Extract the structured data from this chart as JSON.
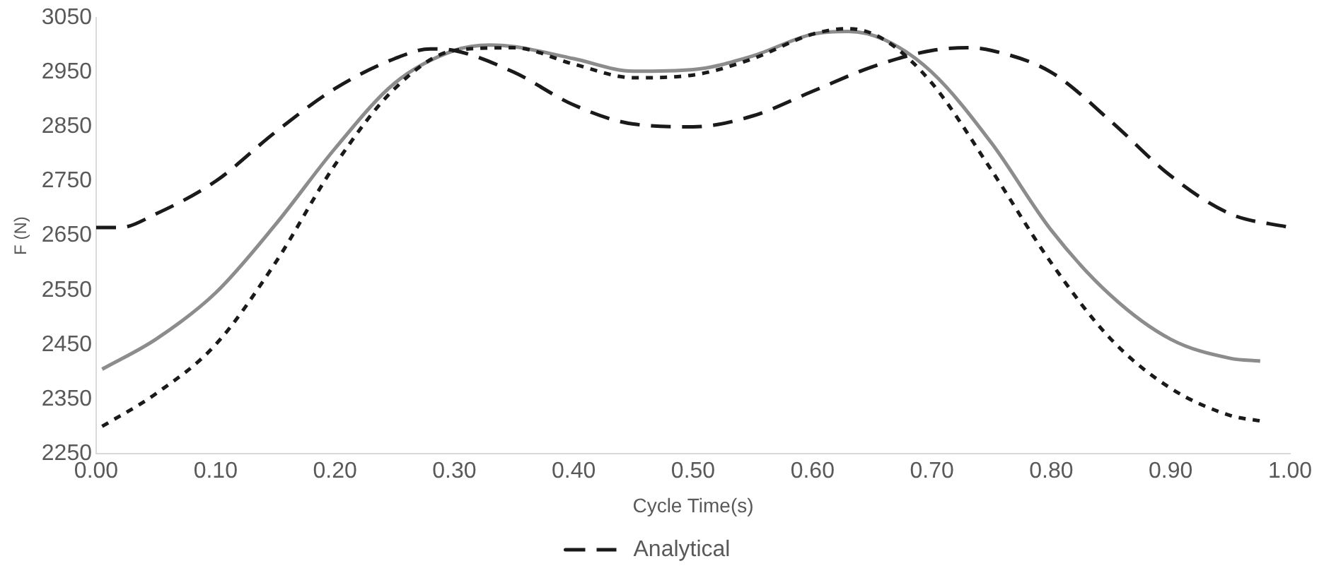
{
  "chart_data": {
    "type": "line",
    "xlabel": "Cycle Time(s)",
    "ylabel": "F (N)",
    "xlim": [
      0,
      1
    ],
    "ylim": [
      2250,
      3050
    ],
    "xticks": [
      {
        "value": 0,
        "label": "0.00"
      },
      {
        "value": 0.1,
        "label": "0.10"
      },
      {
        "value": 0.2,
        "label": "0.20"
      },
      {
        "value": 0.3,
        "label": "0.30"
      },
      {
        "value": 0.4,
        "label": "0.40"
      },
      {
        "value": 0.5,
        "label": "0.50"
      },
      {
        "value": 0.6,
        "label": "0.60"
      },
      {
        "value": 0.7,
        "label": "0.70"
      },
      {
        "value": 0.8,
        "label": "0.80"
      },
      {
        "value": 0.9,
        "label": "0.90"
      },
      {
        "value": 1,
        "label": "1.00"
      }
    ],
    "yticks": [
      2250,
      2350,
      2450,
      2550,
      2650,
      2750,
      2850,
      2950,
      3050
    ],
    "grid": false,
    "legend": "bottom",
    "marker": "none",
    "series": [
      {
        "color": "#1a1a1a",
        "line_style": "dotted",
        "x": [
          0.005,
          0.05,
          0.1,
          0.15,
          0.2,
          0.25,
          0.3,
          0.35,
          0.4,
          0.45,
          0.5,
          0.55,
          0.6,
          0.63,
          0.66,
          0.7,
          0.75,
          0.8,
          0.85,
          0.9,
          0.95,
          0.975
        ],
        "values": [
          2300,
          2360,
          2450,
          2600,
          2780,
          2920,
          2990,
          2995,
          2965,
          2940,
          2945,
          2975,
          3020,
          3030,
          3010,
          2930,
          2770,
          2600,
          2460,
          2370,
          2320,
          2310
        ]
      },
      {
        "name": "Analytical",
        "color": "#1a1a1a",
        "line_style": "dashed",
        "x": [
          0,
          0.02,
          0.05,
          0.1,
          0.15,
          0.2,
          0.25,
          0.28,
          0.3,
          0.35,
          0.4,
          0.45,
          0.5,
          0.55,
          0.6,
          0.65,
          0.7,
          0.73,
          0.75,
          0.8,
          0.85,
          0.9,
          0.95,
          1
        ],
        "values": [
          2665,
          2665,
          2690,
          2750,
          2840,
          2920,
          2975,
          2993,
          2990,
          2950,
          2890,
          2855,
          2850,
          2870,
          2915,
          2960,
          2990,
          2995,
          2990,
          2950,
          2860,
          2760,
          2690,
          2665
        ]
      },
      {
        "color": "#8c8c8c",
        "line_style": "solid",
        "x": [
          0.005,
          0.05,
          0.1,
          0.15,
          0.2,
          0.25,
          0.3,
          0.33,
          0.35,
          0.4,
          0.45,
          0.5,
          0.55,
          0.6,
          0.63,
          0.66,
          0.7,
          0.75,
          0.8,
          0.85,
          0.9,
          0.95,
          0.975
        ],
        "values": [
          2405,
          2460,
          2545,
          2670,
          2810,
          2930,
          2990,
          3000,
          2997,
          2975,
          2952,
          2955,
          2980,
          3020,
          3025,
          3010,
          2950,
          2820,
          2660,
          2540,
          2460,
          2425,
          2420
        ]
      }
    ]
  }
}
